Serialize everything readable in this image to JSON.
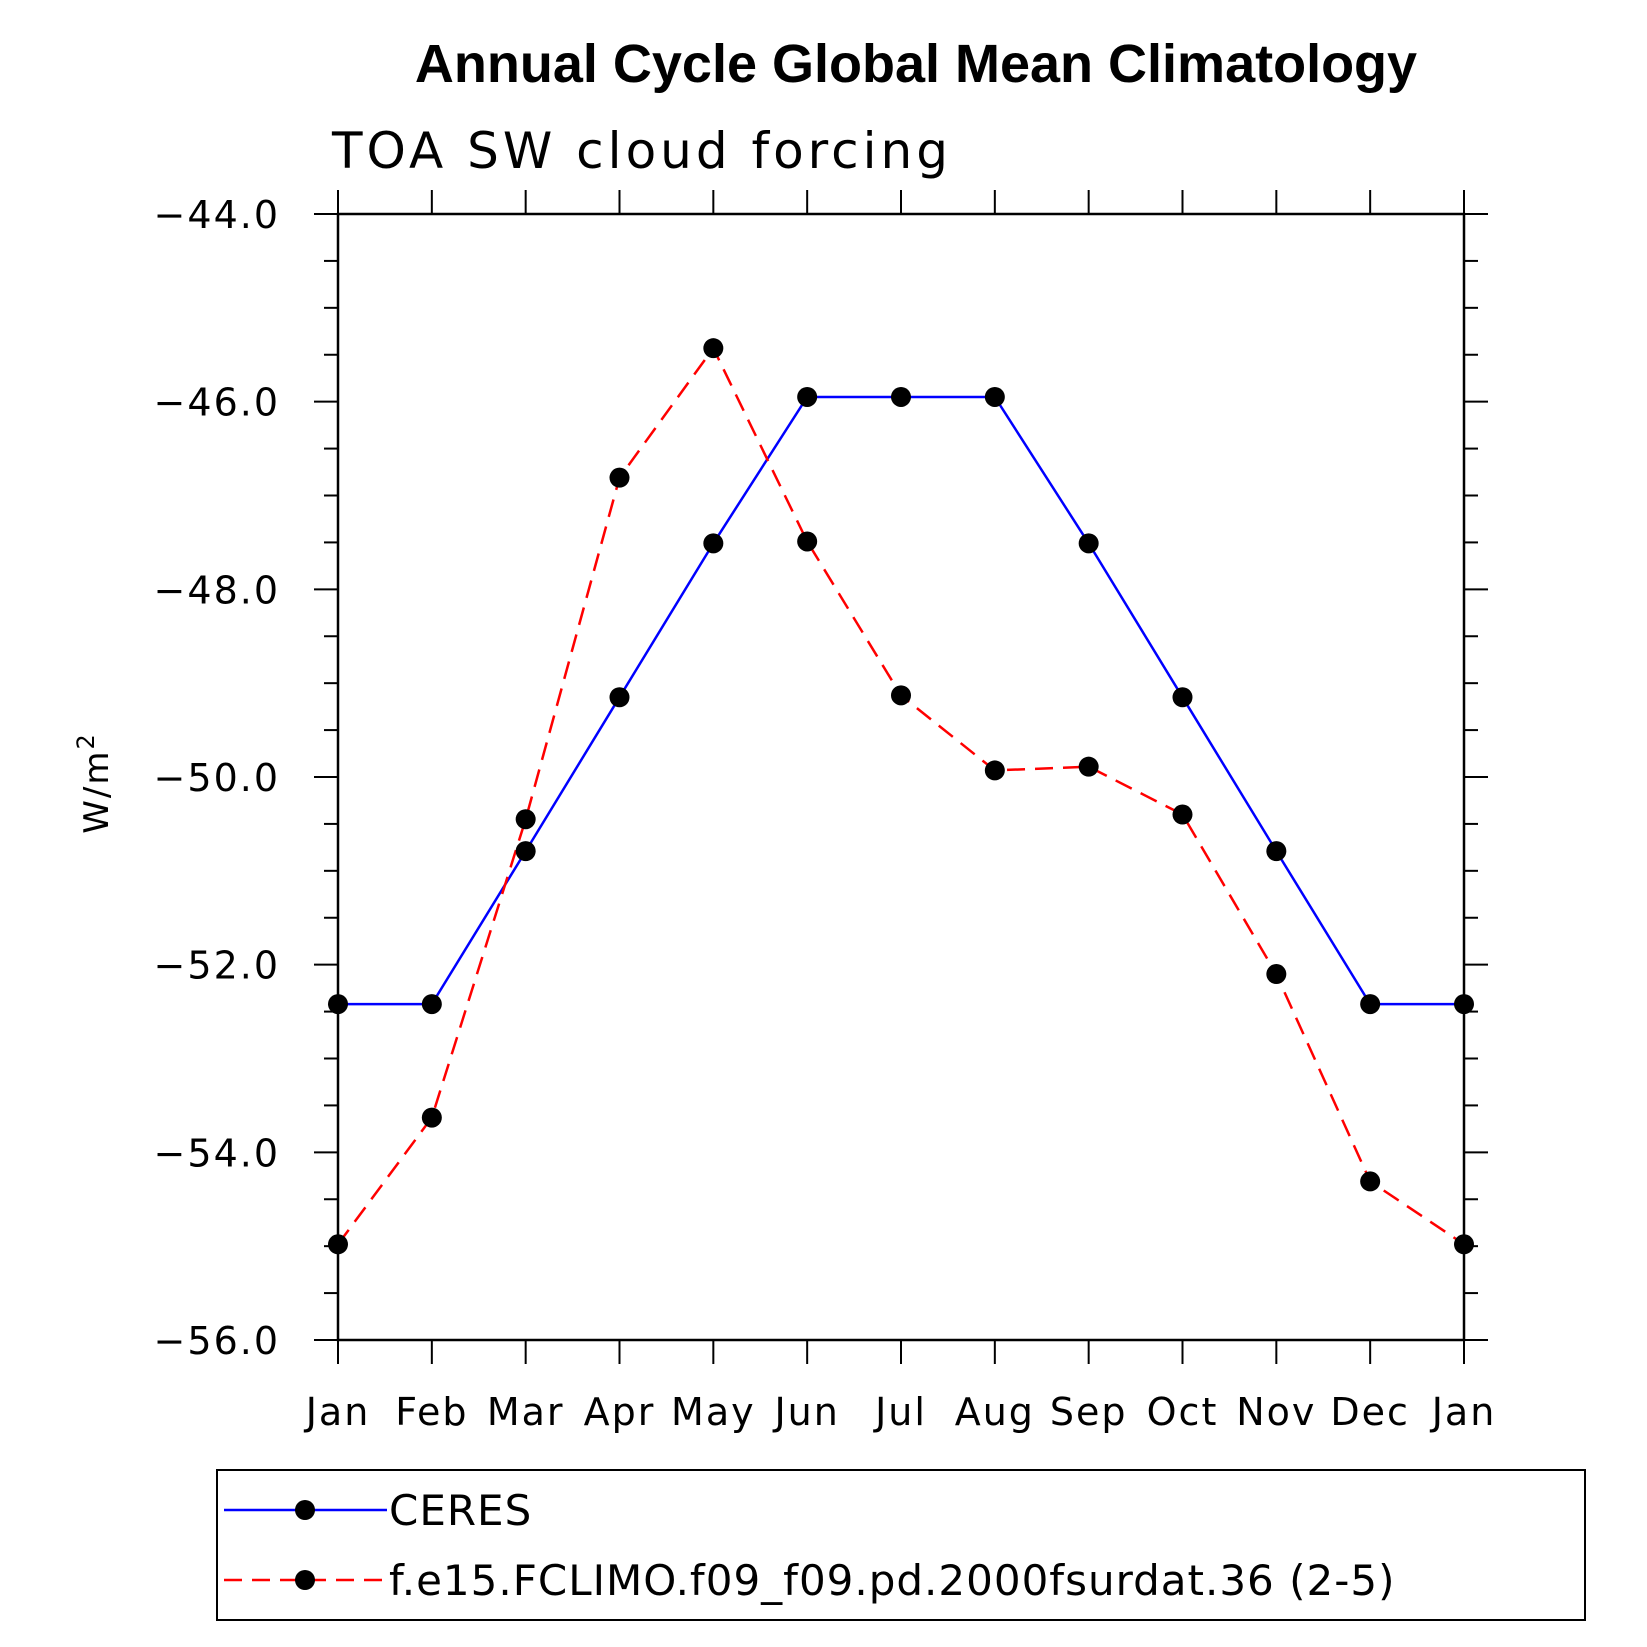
{
  "chart_data": {
    "type": "line",
    "title": "Annual Cycle Global Mean Climatology",
    "subtitle": "TOA SW cloud forcing",
    "ylabel": "W/m",
    "ylabel_sup": "2",
    "ylim": [
      -56.0,
      -44.0
    ],
    "yticks": [
      "-44.0",
      "-46.0",
      "-48.0",
      "-50.0",
      "-52.0",
      "-54.0",
      "-56.0"
    ],
    "ytick_values": [
      -44,
      -46,
      -48,
      -50,
      -52,
      -54,
      -56
    ],
    "categories": [
      "Jan",
      "Feb",
      "Mar",
      "Apr",
      "May",
      "Jun",
      "Jul",
      "Aug",
      "Sep",
      "Oct",
      "Nov",
      "Dec",
      "Jan"
    ],
    "grid": false,
    "legend_position": "bottom",
    "series": [
      {
        "name": "CERES",
        "color": "#0000ff",
        "style": "solid",
        "values": [
          -52.42,
          -52.42,
          -50.79,
          -49.15,
          -47.51,
          -45.95,
          -45.95,
          -45.95,
          -47.51,
          -49.15,
          -50.79,
          -52.42,
          -52.42
        ]
      },
      {
        "name": "f.e15.FCLIMO.f09_f09.pd.2000fsurdat.36 (2-5)",
        "color": "#ff0000",
        "style": "dashed",
        "values": [
          -54.98,
          -53.63,
          -50.45,
          -46.81,
          -45.43,
          -47.49,
          -49.13,
          -49.93,
          -49.89,
          -50.4,
          -52.1,
          -54.31,
          -54.98
        ]
      }
    ]
  }
}
